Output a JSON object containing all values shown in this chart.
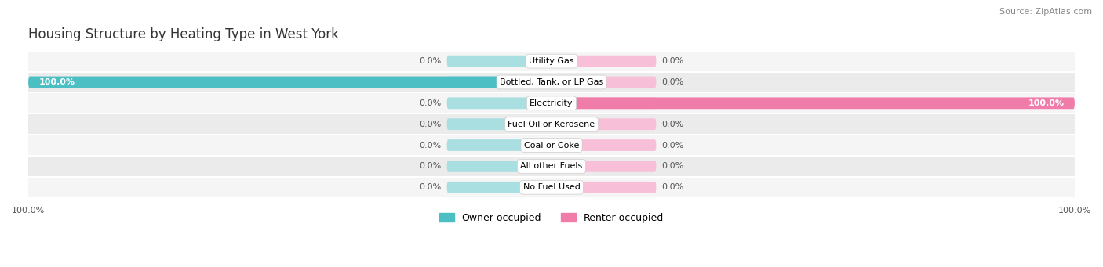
{
  "title": "Housing Structure by Heating Type in West York",
  "source": "Source: ZipAtlas.com",
  "categories": [
    "Utility Gas",
    "Bottled, Tank, or LP Gas",
    "Electricity",
    "Fuel Oil or Kerosene",
    "Coal or Coke",
    "All other Fuels",
    "No Fuel Used"
  ],
  "owner_values": [
    0.0,
    100.0,
    0.0,
    0.0,
    0.0,
    0.0,
    0.0
  ],
  "renter_values": [
    0.0,
    0.0,
    100.0,
    0.0,
    0.0,
    0.0,
    0.0
  ],
  "owner_color": "#4bbfc3",
  "renter_color": "#f07caa",
  "owner_track_color": "#aadfe1",
  "renter_track_color": "#f8c0d8",
  "row_bg_odd": "#f2f2f2",
  "row_bg_even": "#e8e8e8",
  "owner_label": "Owner-occupied",
  "renter_label": "Renter-occupied",
  "xlim": 100,
  "track_pct": 20,
  "bar_height": 0.55,
  "figsize": [
    14.06,
    3.41
  ],
  "dpi": 100,
  "title_fontsize": 12,
  "source_fontsize": 8,
  "axis_label_fontsize": 8,
  "bar_label_fontsize": 8,
  "category_fontsize": 8,
  "legend_fontsize": 9
}
